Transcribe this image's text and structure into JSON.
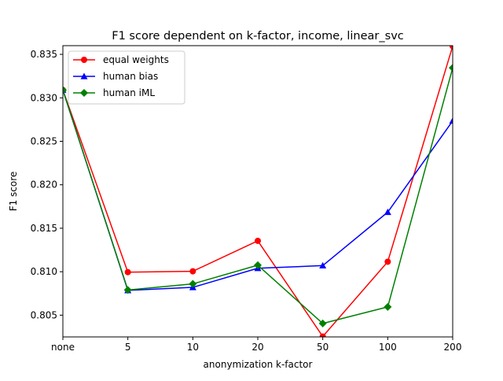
{
  "chart_data": {
    "type": "line",
    "title": "F1 score dependent on k-factor, income, linear_svc",
    "xlabel": "anonymization k-factor",
    "ylabel": "F1 score",
    "categories": [
      "none",
      "5",
      "10",
      "20",
      "50",
      "100",
      "200"
    ],
    "ylim": [
      0.8025,
      0.836
    ],
    "yticks": [
      "0.805",
      "0.810",
      "0.815",
      "0.820",
      "0.825",
      "0.830",
      "0.835"
    ],
    "grid": false,
    "legend_position": "top-left",
    "series": [
      {
        "name": "equal weights",
        "color": "#ff0000",
        "marker": "circle",
        "values": [
          0.8309,
          0.80995,
          0.81005,
          0.81355,
          0.80255,
          0.81115,
          0.83595
        ]
      },
      {
        "name": "human bias",
        "color": "#0000ff",
        "marker": "triangle",
        "values": [
          0.8309,
          0.80785,
          0.8082,
          0.8104,
          0.8107,
          0.81685,
          0.82735
        ]
      },
      {
        "name": "human iML",
        "color": "#008000",
        "marker": "diamond",
        "values": [
          0.8309,
          0.8079,
          0.8086,
          0.81075,
          0.80405,
          0.80595,
          0.83345
        ]
      }
    ]
  }
}
